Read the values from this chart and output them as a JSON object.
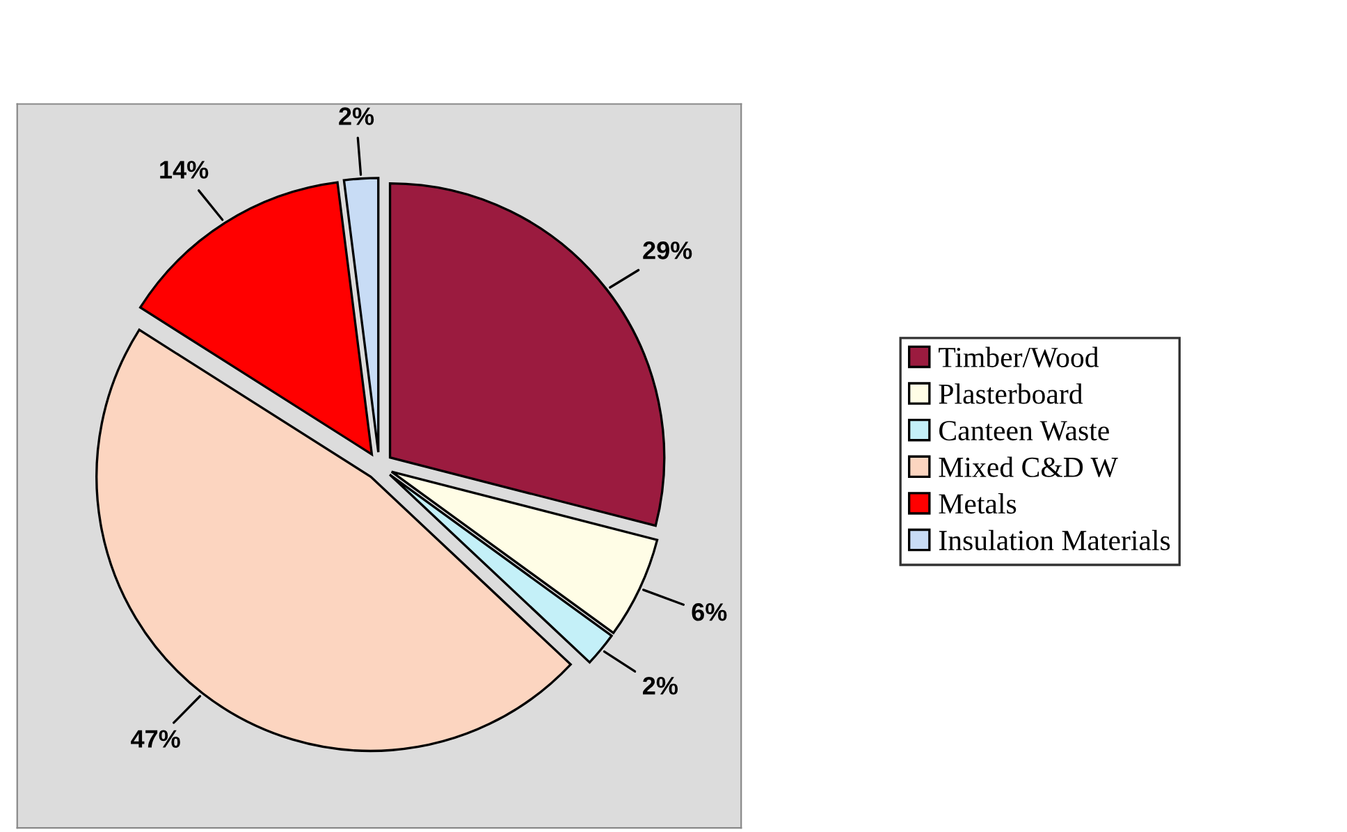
{
  "chart_data": {
    "type": "pie",
    "categories": [
      "Timber/Wood",
      "Plasterboard",
      "Canteen Waste",
      "Mixed C&D W",
      "Metals",
      "Insulation Materials"
    ],
    "values": [
      29,
      6,
      2,
      47,
      14,
      2
    ],
    "colors": [
      "#9b1b3f",
      "#fffde6",
      "#c4f0f8",
      "#fcd5c0",
      "#ff0000",
      "#c8dcf5"
    ],
    "value_labels": [
      "29%",
      "6%",
      "2%",
      "47%",
      "14%",
      "2%"
    ],
    "legend": "right"
  }
}
